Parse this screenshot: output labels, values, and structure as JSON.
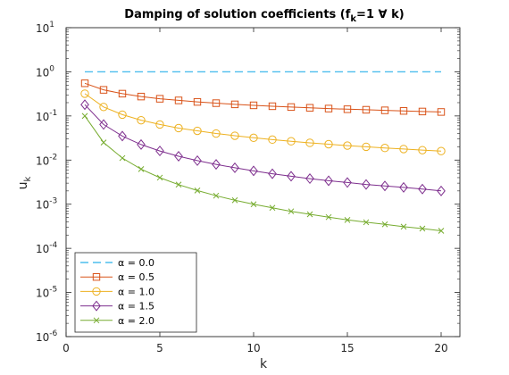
{
  "chart_data": {
    "type": "line",
    "title": "Damping of solution coefficients (f",
    "title_sub": "k",
    "title_rest": "=1 ∀ k)",
    "xlabel": "k",
    "ylabel": "u",
    "ylabel_sub": "k",
    "xlim": [
      0,
      21
    ],
    "ylim": [
      1e-06,
      10
    ],
    "yscale": "log",
    "x_ticks": [
      0,
      5,
      10,
      15,
      20
    ],
    "y_tick_exponents": [
      -6,
      -5,
      -4,
      -3,
      -2,
      -1,
      0,
      1
    ],
    "y_tick_base": "10",
    "legend_position": "bottom-left",
    "x": [
      1,
      2,
      3,
      4,
      5,
      6,
      7,
      8,
      9,
      10,
      11,
      12,
      13,
      14,
      15,
      16,
      17,
      18,
      19,
      20
    ],
    "series": [
      {
        "name": "α = 0.0",
        "color": "#4DBEEE",
        "marker": "none",
        "dash": "dashed",
        "values": [
          1,
          1,
          1,
          1,
          1,
          1,
          1,
          1,
          1,
          1,
          1,
          1,
          1,
          1,
          1,
          1,
          1,
          1,
          1,
          1
        ]
      },
      {
        "name": "α = 0.5",
        "color": "#D95319",
        "marker": "square",
        "dash": "solid",
        "values": [
          0.55,
          0.39,
          0.32,
          0.275,
          0.245,
          0.225,
          0.208,
          0.195,
          0.183,
          0.174,
          0.166,
          0.159,
          0.153,
          0.147,
          0.142,
          0.138,
          0.134,
          0.13,
          0.126,
          0.123
        ]
      },
      {
        "name": "α = 1.0",
        "color": "#EDB120",
        "marker": "circle",
        "dash": "solid",
        "values": [
          0.32,
          0.16,
          0.107,
          0.08,
          0.064,
          0.053,
          0.046,
          0.04,
          0.0356,
          0.032,
          0.0291,
          0.0267,
          0.0246,
          0.0229,
          0.0213,
          0.02,
          0.0188,
          0.0178,
          0.0168,
          0.016
        ]
      },
      {
        "name": "α = 1.5",
        "color": "#7E2F8E",
        "marker": "diamond",
        "dash": "solid",
        "values": [
          0.18,
          0.064,
          0.035,
          0.0225,
          0.0161,
          0.0122,
          0.0097,
          0.008,
          0.0067,
          0.0057,
          0.0049,
          0.0043,
          0.0038,
          0.0034,
          0.0031,
          0.0028,
          0.0026,
          0.0024,
          0.0022,
          0.002
        ]
      },
      {
        "name": "α = 2.0",
        "color": "#77AC30",
        "marker": "cross",
        "dash": "solid",
        "values": [
          0.1,
          0.025,
          0.0111,
          0.00625,
          0.004,
          0.00278,
          0.00204,
          0.00156,
          0.00123,
          0.001,
          0.00083,
          0.00069,
          0.00059,
          0.00051,
          0.00044,
          0.00039,
          0.00035,
          0.00031,
          0.00028,
          0.00025
        ]
      }
    ]
  }
}
